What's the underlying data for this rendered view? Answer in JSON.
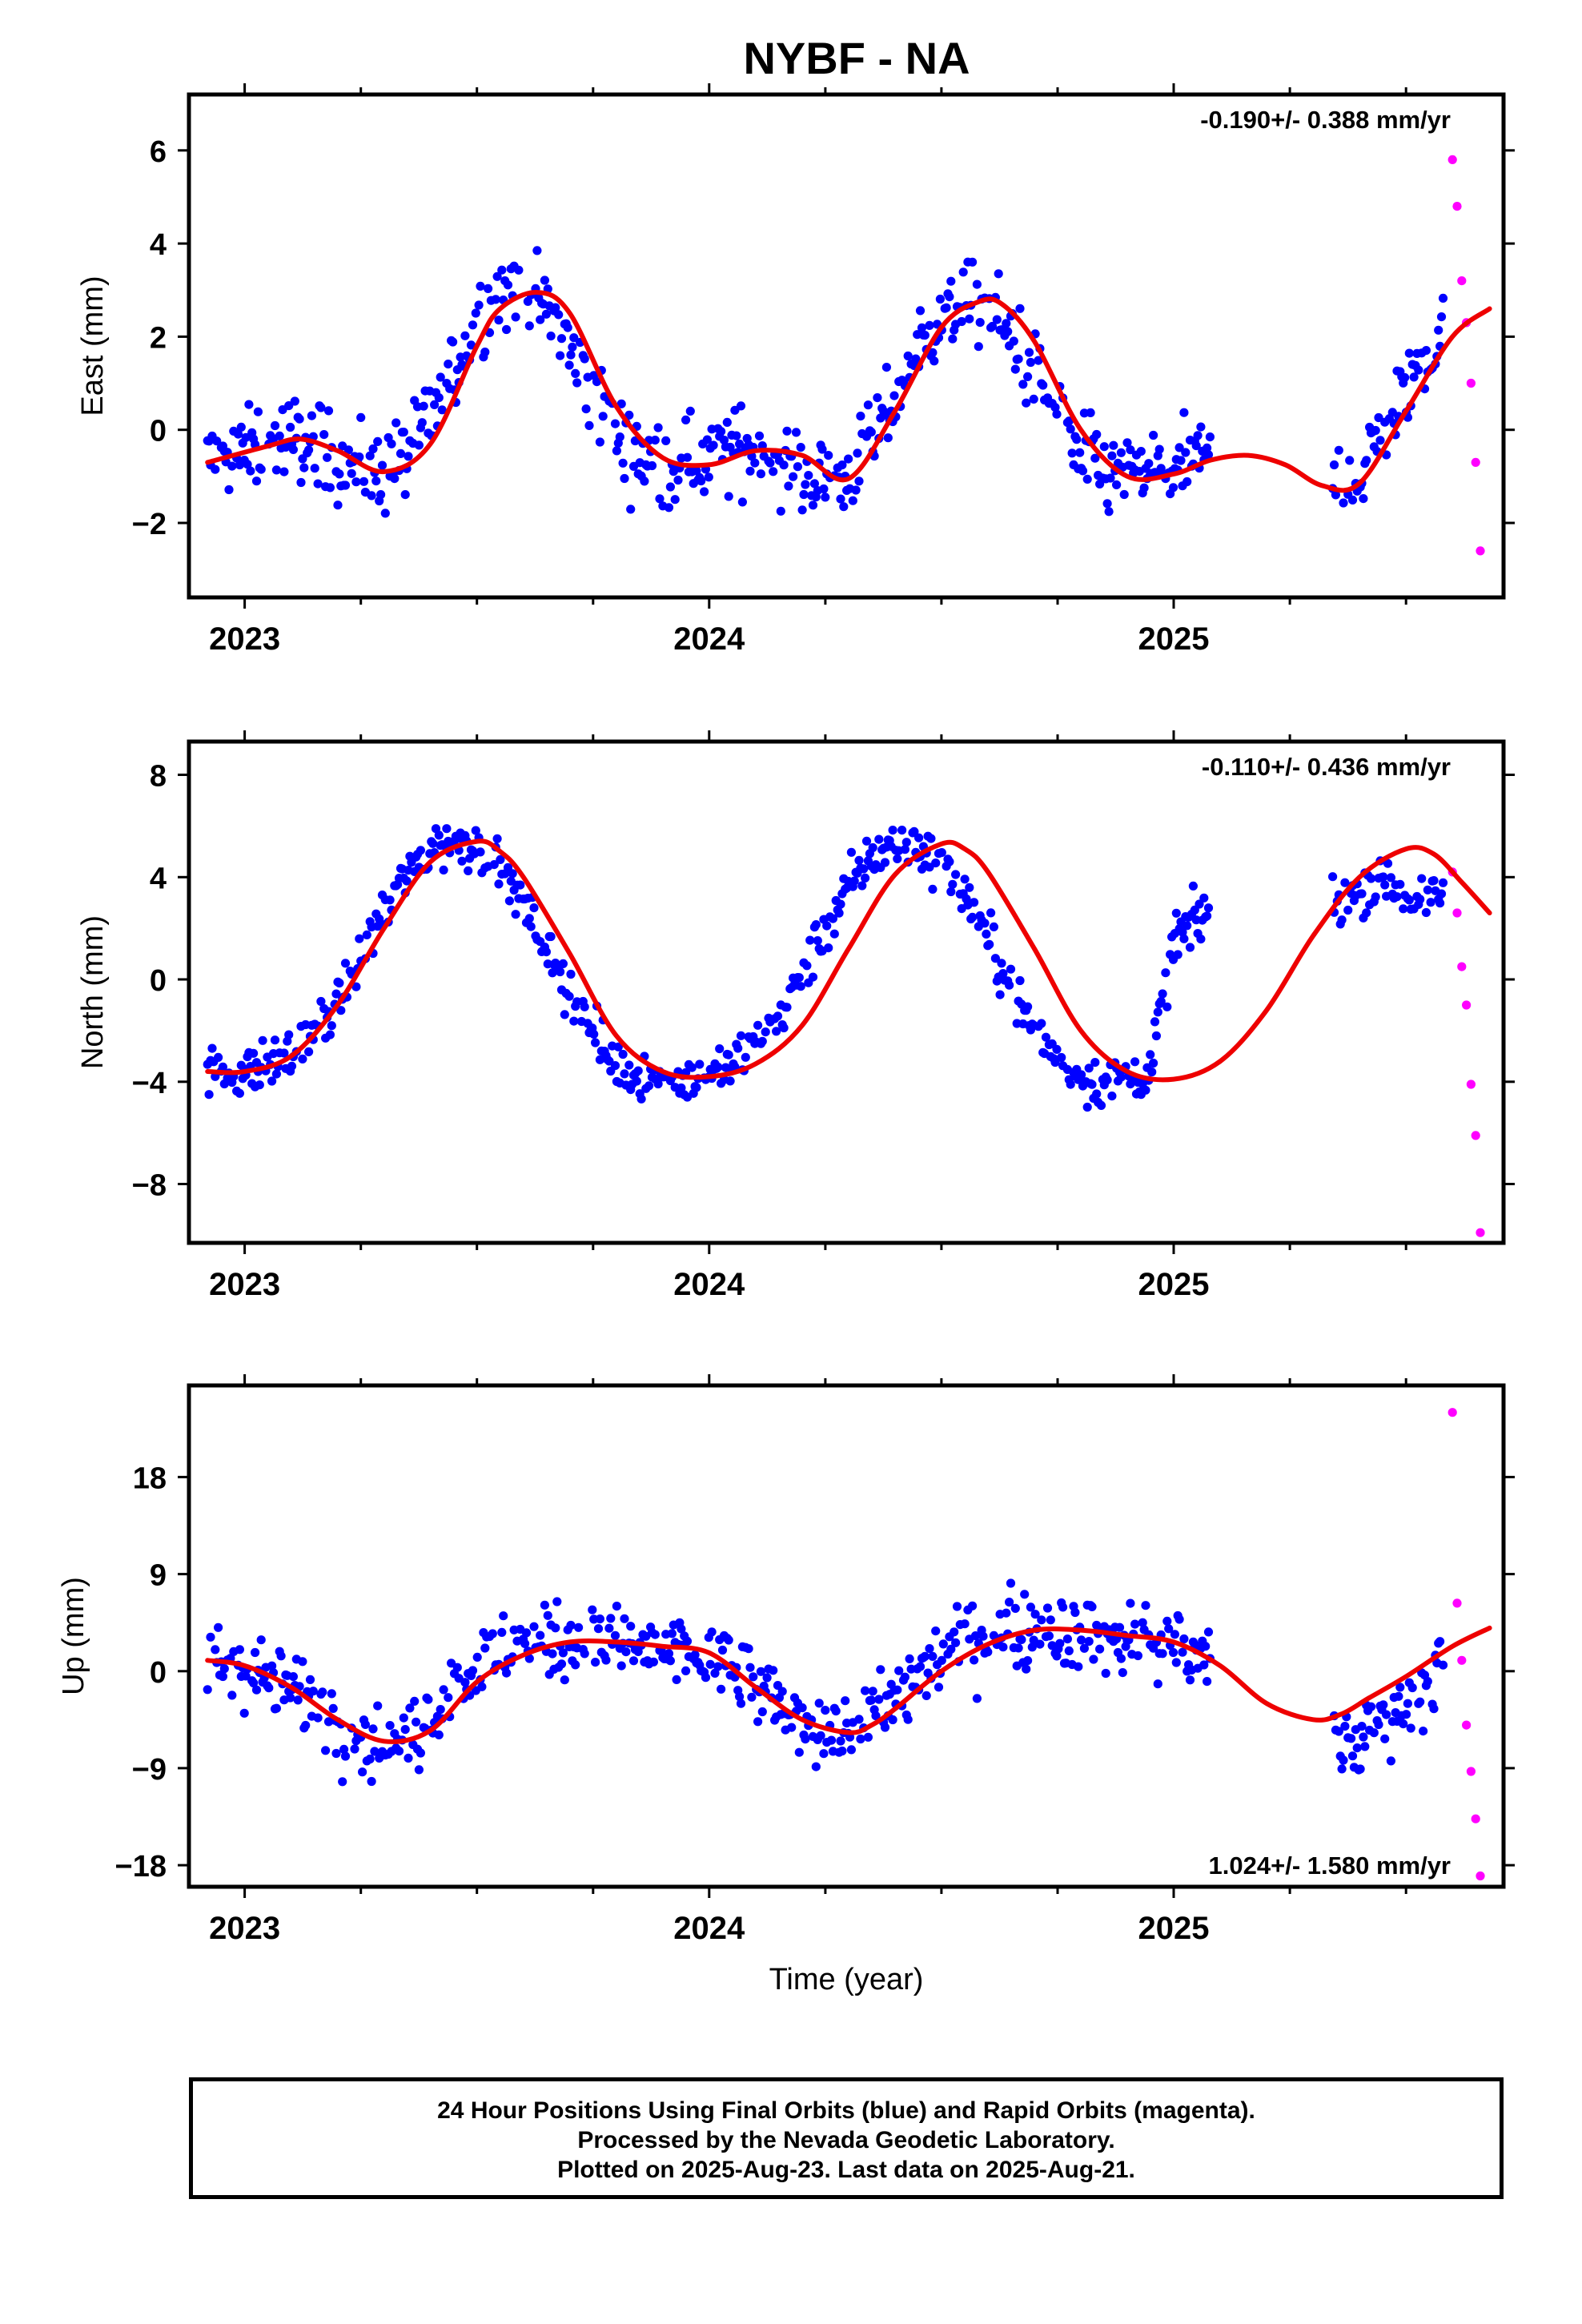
{
  "title": "NYBF - NA",
  "x_axis_label": "Time (year)",
  "footer": {
    "line1": "24 Hour Positions Using Final Orbits (blue) and Rapid Orbits (magenta).",
    "line2": "Processed by the Nevada Geodetic Laboratory.",
    "line3": "Plotted on 2025-Aug-23. Last data on 2025-Aug-21."
  },
  "colors": {
    "final_orbits": "#0000ff",
    "rapid_orbits": "#ff00ff",
    "model_fit": "#ee0000",
    "frame": "#000000"
  },
  "chart_data": [
    {
      "type": "scatter",
      "ylabel": "East (mm)",
      "xlabel": "",
      "rate_label": "-0.190+/- 0.388 mm/yr",
      "rate_position": "top-right",
      "xlim": [
        2022.88,
        2025.71
      ],
      "ylim": [
        -3.6,
        7.2
      ],
      "xticks": [
        2023,
        2024,
        2025
      ],
      "yticks": [
        -2,
        0,
        2,
        4,
        6
      ],
      "yticklabels": [
        "−2",
        "0",
        "2",
        "4",
        "6"
      ],
      "final_data_end": 2025.08,
      "gap_start": 2025.08,
      "gap_end": 2025.34,
      "data_end": 2025.64,
      "series": [
        {
          "name": "Final Orbits",
          "color": "#0000ff",
          "x": [
            2022.92,
            2022.96,
            2023.0,
            2023.05,
            2023.1,
            2023.15,
            2023.2,
            2023.25,
            2023.3,
            2023.35,
            2023.4,
            2023.45,
            2023.5,
            2023.55,
            2023.6,
            2023.65,
            2023.7,
            2023.75,
            2023.8,
            2023.85,
            2023.9,
            2023.95,
            2024.0,
            2024.05,
            2024.1,
            2024.15,
            2024.2,
            2024.25,
            2024.3,
            2024.35,
            2024.4,
            2024.45,
            2024.5,
            2024.55,
            2024.6,
            2024.65,
            2024.7,
            2024.75,
            2024.8,
            2024.85,
            2024.9,
            2024.95,
            2025.0,
            2025.05,
            2025.38,
            2025.42,
            2025.46,
            2025.5,
            2025.54,
            2025.58
          ],
          "y": [
            -0.7,
            -0.6,
            -0.5,
            -0.3,
            -0.2,
            -0.3,
            -0.6,
            -0.8,
            -0.9,
            -0.5,
            0.2,
            1.3,
            2.4,
            2.9,
            3.0,
            2.6,
            1.7,
            0.7,
            -0.1,
            -0.6,
            -0.8,
            -0.7,
            -0.6,
            -0.4,
            -0.4,
            -0.6,
            -0.9,
            -1.1,
            -1.0,
            -0.3,
            0.7,
            1.7,
            2.4,
            2.7,
            2.6,
            2.1,
            1.2,
            0.2,
            -0.5,
            -0.9,
            -1.0,
            -0.9,
            -0.8,
            -0.6,
            -1.1,
            -0.6,
            0.2,
            0.9,
            1.6,
            2.2
          ]
        },
        {
          "name": "Rapid Orbits",
          "color": "#ff00ff",
          "x": [
            2025.6,
            2025.61,
            2025.62,
            2025.63,
            2025.64,
            2025.65,
            2025.66
          ],
          "y": [
            5.8,
            4.8,
            3.2,
            2.3,
            1.0,
            -0.7,
            -2.6
          ]
        },
        {
          "name": "Model fit",
          "color": "#ee0000",
          "x": [
            2022.92,
            2023.05,
            2023.12,
            2023.2,
            2023.3,
            2023.4,
            2023.5,
            2023.55,
            2023.63,
            2023.7,
            2023.8,
            2023.9,
            2024.0,
            2024.1,
            2024.2,
            2024.3,
            2024.4,
            2024.5,
            2024.58,
            2024.63,
            2024.7,
            2024.8,
            2024.9,
            2025.0,
            2025.08,
            2025.16,
            2025.24,
            2025.32,
            2025.4,
            2025.5,
            2025.6,
            2025.68
          ],
          "y": [
            -0.7,
            -0.35,
            -0.2,
            -0.45,
            -0.9,
            -0.3,
            1.8,
            2.6,
            2.95,
            2.5,
            0.5,
            -0.6,
            -0.75,
            -0.45,
            -0.55,
            -1.05,
            0.4,
            2.2,
            2.75,
            2.7,
            1.9,
            0.0,
            -1.0,
            -0.95,
            -0.65,
            -0.55,
            -0.75,
            -1.2,
            -1.15,
            0.4,
            2.0,
            2.6
          ]
        }
      ]
    },
    {
      "type": "scatter",
      "ylabel": "North (mm)",
      "xlabel": "",
      "rate_label": "-0.110+/- 0.436 mm/yr",
      "rate_position": "top-right",
      "xlim": [
        2022.88,
        2025.71
      ],
      "ylim": [
        -10.3,
        9.3
      ],
      "xticks": [
        2023,
        2024,
        2025
      ],
      "yticks": [
        -8,
        -4,
        0,
        4,
        8
      ],
      "yticklabels": [
        "−8",
        "−4",
        "0",
        "4",
        "8"
      ],
      "final_data_end": 2025.08,
      "gap_start": 2025.08,
      "gap_end": 2025.34,
      "data_end": 2025.64,
      "series": [
        {
          "name": "Final Orbits",
          "color": "#0000ff",
          "x": [
            2022.92,
            2022.96,
            2023.0,
            2023.05,
            2023.1,
            2023.15,
            2023.2,
            2023.25,
            2023.3,
            2023.35,
            2023.4,
            2023.45,
            2023.5,
            2023.55,
            2023.6,
            2023.65,
            2023.7,
            2023.75,
            2023.8,
            2023.85,
            2023.9,
            2023.95,
            2024.0,
            2024.05,
            2024.1,
            2024.15,
            2024.2,
            2024.25,
            2024.3,
            2024.35,
            2024.4,
            2024.45,
            2024.5,
            2024.55,
            2024.6,
            2024.65,
            2024.7,
            2024.75,
            2024.8,
            2024.85,
            2024.9,
            2024.95,
            2025.0,
            2025.05,
            2025.38,
            2025.42,
            2025.46,
            2025.5,
            2025.54,
            2025.58
          ],
          "y": [
            -3.6,
            -3.7,
            -3.6,
            -3.4,
            -3.0,
            -2.2,
            -0.9,
            0.8,
            2.6,
            4.2,
            5.2,
            5.5,
            5.2,
            4.3,
            3.0,
            1.3,
            -0.6,
            -2.2,
            -3.3,
            -3.7,
            -3.9,
            -3.9,
            -3.7,
            -3.3,
            -2.6,
            -1.5,
            0.2,
            2.0,
            3.6,
            4.8,
            5.3,
            5.2,
            4.5,
            3.3,
            1.6,
            -0.3,
            -2.0,
            -3.2,
            -3.8,
            -4.0,
            -3.9,
            -3.5,
            1.5,
            2.4,
            3.2,
            3.8,
            4.0,
            3.2,
            2.8,
            3.4
          ]
        },
        {
          "name": "Rapid Orbits",
          "color": "#ff00ff",
          "x": [
            2025.6,
            2025.61,
            2025.62,
            2025.63,
            2025.64,
            2025.65,
            2025.66
          ],
          "y": [
            4.2,
            2.6,
            0.5,
            -1.0,
            -4.1,
            -6.1,
            -9.9
          ]
        },
        {
          "name": "Model fit",
          "color": "#ee0000",
          "x": [
            2022.92,
            2023.0,
            2023.1,
            2023.2,
            2023.3,
            2023.4,
            2023.5,
            2023.55,
            2023.6,
            2023.7,
            2023.8,
            2023.9,
            2024.0,
            2024.1,
            2024.2,
            2024.3,
            2024.4,
            2024.5,
            2024.55,
            2024.6,
            2024.7,
            2024.8,
            2024.9,
            2025.0,
            2025.1,
            2025.2,
            2025.3,
            2025.4,
            2025.5,
            2025.56,
            2025.62,
            2025.68
          ],
          "y": [
            -3.6,
            -3.6,
            -3.0,
            -1.0,
            2.0,
            4.6,
            5.4,
            5.0,
            4.0,
            1.0,
            -2.2,
            -3.6,
            -3.8,
            -3.3,
            -1.8,
            1.2,
            4.1,
            5.3,
            5.1,
            4.2,
            1.2,
            -2.0,
            -3.6,
            -3.9,
            -3.2,
            -1.2,
            1.7,
            4.0,
            5.1,
            4.9,
            3.8,
            2.6
          ]
        }
      ]
    },
    {
      "type": "scatter",
      "ylabel": "Up (mm)",
      "xlabel": "Time (year)",
      "rate_label": "1.024+/- 1.580 mm/yr",
      "rate_position": "bottom-right",
      "xlim": [
        2022.88,
        2025.71
      ],
      "ylim": [
        -20,
        26.5
      ],
      "xticks": [
        2023,
        2024,
        2025
      ],
      "yticks": [
        -18,
        -9,
        0,
        9,
        18
      ],
      "yticklabels": [
        "−18",
        "−9",
        "0",
        "9",
        "18"
      ],
      "final_data_end": 2025.08,
      "gap_start": 2025.08,
      "gap_end": 2025.34,
      "data_end": 2025.64,
      "series": [
        {
          "name": "Final Orbits",
          "color": "#0000ff",
          "x": [
            2022.92,
            2022.96,
            2023.0,
            2023.05,
            2023.1,
            2023.15,
            2023.2,
            2023.25,
            2023.3,
            2023.35,
            2023.4,
            2023.45,
            2023.5,
            2023.55,
            2023.6,
            2023.65,
            2023.7,
            2023.75,
            2023.8,
            2023.85,
            2023.9,
            2023.95,
            2024.0,
            2024.05,
            2024.1,
            2024.15,
            2024.2,
            2024.25,
            2024.3,
            2024.35,
            2024.4,
            2024.45,
            2024.5,
            2024.55,
            2024.6,
            2024.65,
            2024.7,
            2024.75,
            2024.8,
            2024.85,
            2024.9,
            2024.95,
            2025.0,
            2025.05,
            2025.38,
            2025.42,
            2025.46,
            2025.5,
            2025.54,
            2025.58
          ],
          "y": [
            1.2,
            1.0,
            0.5,
            -0.5,
            -1.5,
            -2.5,
            -4.5,
            -6.5,
            -7.0,
            -6.5,
            -4.0,
            -1.5,
            0.5,
            1.5,
            2.5,
            3.0,
            3.0,
            2.7,
            2.5,
            2.3,
            2.0,
            1.5,
            1.0,
            0.0,
            -1.5,
            -3.5,
            -4.5,
            -5.5,
            -5.5,
            -4.5,
            -2.5,
            -0.5,
            1.5,
            2.5,
            3.5,
            4.0,
            4.0,
            3.8,
            3.5,
            3.0,
            3.0,
            2.5,
            2.0,
            1.0,
            -7.0,
            -5.5,
            -4.0,
            -2.5,
            -1.0,
            0.5
          ]
        },
        {
          "name": "Rapid Orbits",
          "color": "#ff00ff",
          "x": [
            2025.6,
            2025.61,
            2025.62,
            2025.63,
            2025.64,
            2025.65,
            2025.66
          ],
          "y": [
            24.0,
            6.3,
            1.0,
            -5.0,
            -9.3,
            -13.7,
            -19.0
          ]
        },
        {
          "name": "Model fit",
          "color": "#ee0000",
          "x": [
            2022.92,
            2023.0,
            2023.1,
            2023.2,
            2023.3,
            2023.4,
            2023.5,
            2023.6,
            2023.7,
            2023.8,
            2023.9,
            2024.0,
            2024.1,
            2024.2,
            2024.3,
            2024.35,
            2024.4,
            2024.5,
            2024.6,
            2024.7,
            2024.8,
            2024.9,
            2025.0,
            2025.1,
            2025.2,
            2025.3,
            2025.36,
            2025.42,
            2025.5,
            2025.6,
            2025.68
          ],
          "y": [
            1.0,
            0.5,
            -1.5,
            -4.5,
            -6.5,
            -5.5,
            -1.0,
            1.5,
            2.7,
            2.7,
            2.3,
            1.7,
            -1.5,
            -4.5,
            -5.7,
            -5.0,
            -3.5,
            0.0,
            2.5,
            3.8,
            3.8,
            3.3,
            2.7,
            0.5,
            -3.0,
            -4.5,
            -4.0,
            -2.5,
            -0.5,
            2.3,
            4.0
          ]
        }
      ]
    }
  ]
}
